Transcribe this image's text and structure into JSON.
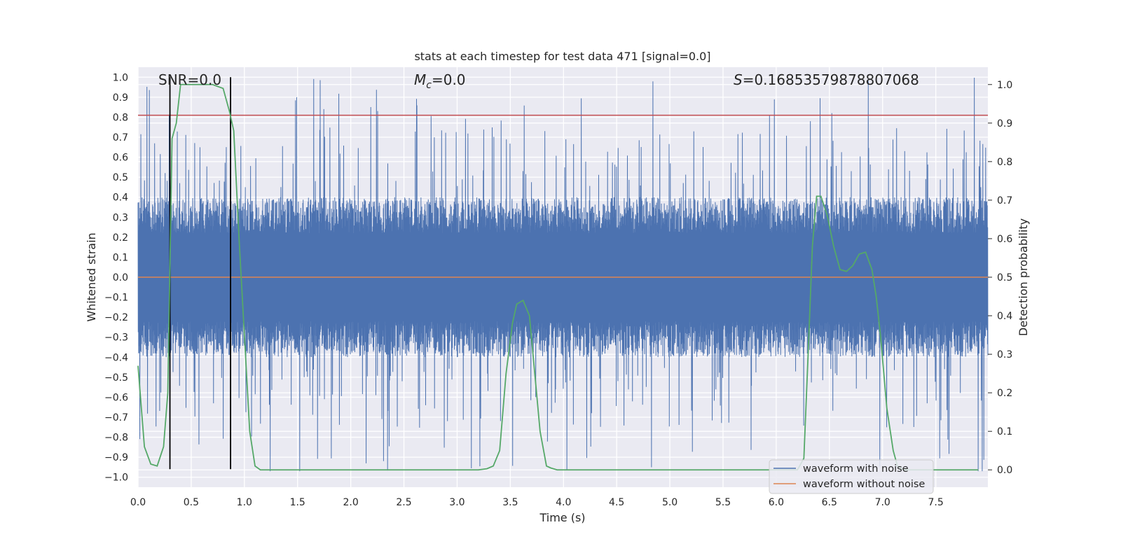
{
  "chart_data": {
    "type": "line",
    "title": "stats at each timestep for test data 471 [signal=0.0]",
    "xlabel": "Time (s)",
    "ylabel": "Whitened strain",
    "y2label": "Detection probability",
    "xlim": [
      0.0,
      7.99
    ],
    "ylim": [
      -1.05,
      1.05
    ],
    "y2lim": [
      -0.045,
      1.045
    ],
    "xticks": [
      "0.0",
      "0.5",
      "1.0",
      "1.5",
      "2.0",
      "2.5",
      "3.0",
      "3.5",
      "4.0",
      "4.5",
      "5.0",
      "5.5",
      "6.0",
      "6.5",
      "7.0",
      "7.5"
    ],
    "yticks": [
      "1.0",
      "0.9",
      "0.8",
      "0.7",
      "0.6",
      "0.5",
      "0.4",
      "0.3",
      "0.2",
      "0.1",
      "0.0",
      "−0.1",
      "−0.2",
      "−0.3",
      "−0.4",
      "−0.5",
      "−0.6",
      "−0.7",
      "−0.8",
      "−0.9",
      "−1.0"
    ],
    "y2ticks": [
      "1.0",
      "0.9",
      "0.8",
      "0.7",
      "0.6",
      "0.5",
      "0.4",
      "0.3",
      "0.2",
      "0.1",
      "0.0"
    ],
    "annotations": {
      "snr": "SNR=0.0",
      "mc_symbol": "M",
      "mc_sub": "c",
      "mc_value": "=0.0",
      "s_symbol": "S",
      "s_value": "=0.16853579878807068"
    },
    "grid": true,
    "legend_placement": "lower-right",
    "series": [
      {
        "name": "waveform with noise",
        "color": "#4c72b0",
        "style": "noise-band",
        "envelope_typical": 0.4,
        "spike_max": 1.0
      },
      {
        "name": "waveform without noise",
        "color": "#dd8452",
        "values_constant": 0.0
      },
      {
        "color": "#55a868",
        "axis": "right",
        "x": [
          0.0,
          0.06,
          0.12,
          0.18,
          0.24,
          0.28,
          0.32,
          0.36,
          0.4,
          0.5,
          0.6,
          0.7,
          0.8,
          0.86,
          0.9,
          0.95,
          1.0,
          1.05,
          1.1,
          1.15,
          1.2,
          1.5,
          2.0,
          2.5,
          3.0,
          3.2,
          3.28,
          3.34,
          3.4,
          3.46,
          3.52,
          3.56,
          3.62,
          3.68,
          3.72,
          3.78,
          3.84,
          3.88,
          3.94,
          4.0,
          5.0,
          6.0,
          6.2,
          6.26,
          6.3,
          6.34,
          6.38,
          6.42,
          6.48,
          6.54,
          6.6,
          6.66,
          6.72,
          6.78,
          6.84,
          6.9,
          6.94,
          6.98,
          7.04,
          7.1,
          7.14,
          7.2,
          7.5,
          7.9
        ],
        "values": [
          0.27,
          0.06,
          0.015,
          0.01,
          0.06,
          0.2,
          0.86,
          0.9,
          1.0,
          1.0,
          1.0,
          1.0,
          0.99,
          0.93,
          0.88,
          0.6,
          0.35,
          0.1,
          0.01,
          0.0,
          0.0,
          0.0,
          0.0,
          0.0,
          0.0,
          0.0,
          0.003,
          0.01,
          0.05,
          0.25,
          0.38,
          0.43,
          0.44,
          0.4,
          0.28,
          0.1,
          0.01,
          0.005,
          0.0,
          0.0,
          0.0,
          0.0,
          0.0,
          0.03,
          0.3,
          0.58,
          0.71,
          0.71,
          0.66,
          0.58,
          0.52,
          0.515,
          0.53,
          0.56,
          0.565,
          0.52,
          0.45,
          0.35,
          0.16,
          0.05,
          0.01,
          0.0,
          0.0,
          0.0
        ]
      }
    ],
    "hlines": [
      {
        "y": 0.81,
        "color": "#c44e52"
      }
    ],
    "vlines": [
      {
        "x": 0.3,
        "ymin": -0.96,
        "ymax": 1.0,
        "color": "#000000"
      },
      {
        "x": 0.87,
        "ymin": -0.96,
        "ymax": 1.0,
        "color": "#000000"
      }
    ]
  }
}
